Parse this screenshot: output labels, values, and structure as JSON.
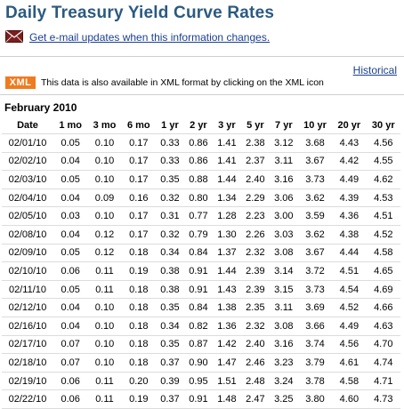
{
  "title": "Daily Treasury Yield Curve Rates",
  "email_link": "Get e-mail updates when this information changes.",
  "historical_link": "Historical",
  "xml_badge": "XML",
  "xml_note": "This data is also available in XML format by clicking on the XML icon",
  "month_label": "February 2010",
  "table": {
    "headers": [
      "Date",
      "1 mo",
      "3 mo",
      "6 mo",
      "1 yr",
      "2 yr",
      "3 yr",
      "5 yr",
      "7 yr",
      "10 yr",
      "20 yr",
      "30 yr"
    ],
    "rows": [
      [
        "02/01/10",
        "0.05",
        "0.10",
        "0.17",
        "0.33",
        "0.86",
        "1.41",
        "2.38",
        "3.12",
        "3.68",
        "4.43",
        "4.56"
      ],
      [
        "02/02/10",
        "0.04",
        "0.10",
        "0.17",
        "0.33",
        "0.86",
        "1.41",
        "2.37",
        "3.11",
        "3.67",
        "4.42",
        "4.55"
      ],
      [
        "02/03/10",
        "0.05",
        "0.10",
        "0.17",
        "0.35",
        "0.88",
        "1.44",
        "2.40",
        "3.16",
        "3.73",
        "4.49",
        "4.62"
      ],
      [
        "02/04/10",
        "0.04",
        "0.09",
        "0.16",
        "0.32",
        "0.80",
        "1.34",
        "2.29",
        "3.06",
        "3.62",
        "4.39",
        "4.53"
      ],
      [
        "02/05/10",
        "0.03",
        "0.10",
        "0.17",
        "0.31",
        "0.77",
        "1.28",
        "2.23",
        "3.00",
        "3.59",
        "4.36",
        "4.51"
      ],
      [
        "02/08/10",
        "0.04",
        "0.12",
        "0.17",
        "0.32",
        "0.79",
        "1.30",
        "2.26",
        "3.03",
        "3.62",
        "4.38",
        "4.52"
      ],
      [
        "02/09/10",
        "0.05",
        "0.12",
        "0.18",
        "0.34",
        "0.84",
        "1.37",
        "2.32",
        "3.08",
        "3.67",
        "4.44",
        "4.58"
      ],
      [
        "02/10/10",
        "0.06",
        "0.11",
        "0.19",
        "0.38",
        "0.91",
        "1.44",
        "2.39",
        "3.14",
        "3.72",
        "4.51",
        "4.65"
      ],
      [
        "02/11/10",
        "0.05",
        "0.11",
        "0.18",
        "0.38",
        "0.91",
        "1.43",
        "2.39",
        "3.15",
        "3.73",
        "4.54",
        "4.69"
      ],
      [
        "02/12/10",
        "0.04",
        "0.10",
        "0.18",
        "0.35",
        "0.84",
        "1.38",
        "2.35",
        "3.11",
        "3.69",
        "4.52",
        "4.66"
      ],
      [
        "02/16/10",
        "0.04",
        "0.10",
        "0.18",
        "0.34",
        "0.82",
        "1.36",
        "2.32",
        "3.08",
        "3.66",
        "4.49",
        "4.63"
      ],
      [
        "02/17/10",
        "0.07",
        "0.10",
        "0.18",
        "0.35",
        "0.87",
        "1.42",
        "2.40",
        "3.16",
        "3.74",
        "4.56",
        "4.70"
      ],
      [
        "02/18/10",
        "0.07",
        "0.10",
        "0.18",
        "0.37",
        "0.90",
        "1.47",
        "2.46",
        "3.23",
        "3.79",
        "4.61",
        "4.74"
      ],
      [
        "02/19/10",
        "0.06",
        "0.11",
        "0.20",
        "0.39",
        "0.95",
        "1.51",
        "2.48",
        "3.24",
        "3.78",
        "4.58",
        "4.71"
      ],
      [
        "02/22/10",
        "0.06",
        "0.11",
        "0.19",
        "0.37",
        "0.91",
        "1.48",
        "2.47",
        "3.25",
        "3.80",
        "4.60",
        "4.73"
      ]
    ]
  },
  "colors": {
    "title": "#2b5a80",
    "link": "#1a3f8f",
    "xml_badge": "#f07b1e"
  },
  "icons": {
    "email": "envelope-icon"
  }
}
